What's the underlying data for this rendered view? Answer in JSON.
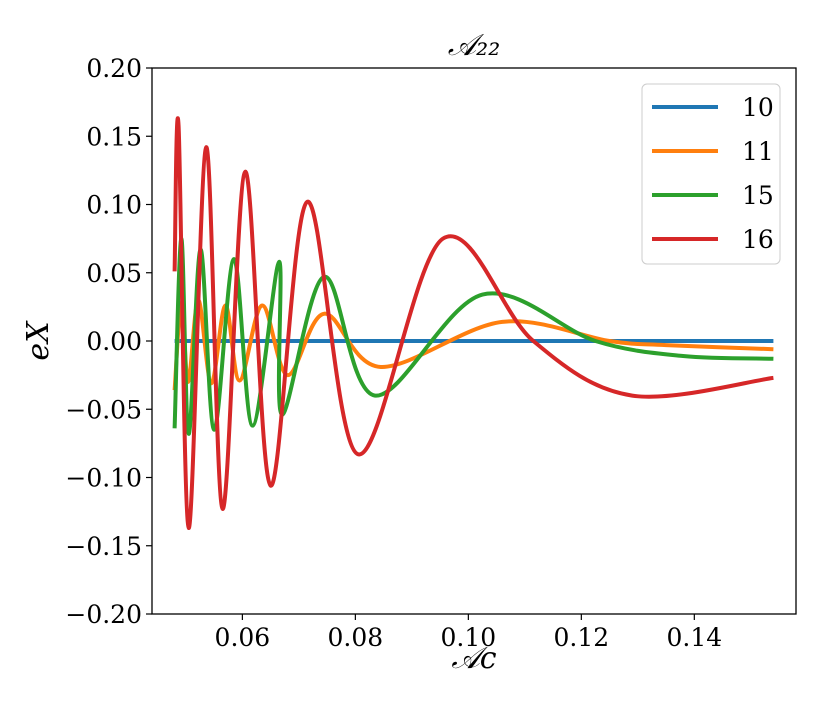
{
  "chart_data": {
    "type": "line",
    "title": "𝒜₂₂",
    "xlabel": "𝒜c",
    "ylabel": "eX",
    "xlim": [
      0.044,
      0.158
    ],
    "ylim": [
      -0.2,
      0.2
    ],
    "xticks": [
      0.06,
      0.08,
      0.1,
      0.12,
      0.14
    ],
    "xtick_labels": [
      "0.06",
      "0.08",
      "0.10",
      "0.12",
      "0.14"
    ],
    "yticks": [
      0.2,
      0.15,
      0.1,
      0.05,
      0.0,
      -0.05,
      -0.1,
      -0.15,
      -0.2
    ],
    "ytick_labels": [
      "0.20",
      "0.15",
      "0.10",
      "0.05",
      "0.00",
      "−0.05",
      "−0.10",
      "−0.15",
      "−0.20"
    ],
    "grid": false,
    "legend_position": "top-right",
    "series": [
      {
        "name": "10",
        "color": "#1f77b4",
        "points": [
          [
            0.048,
            0.0
          ],
          [
            0.154,
            0.0
          ]
        ]
      },
      {
        "name": "11",
        "color": "#ff7f0e",
        "points": [
          [
            0.048,
            -0.036
          ],
          [
            0.0492,
            0.028
          ],
          [
            0.0504,
            -0.03
          ],
          [
            0.0522,
            0.03
          ],
          [
            0.0545,
            -0.031
          ],
          [
            0.057,
            0.026
          ],
          [
            0.0595,
            -0.029
          ],
          [
            0.0635,
            0.026
          ],
          [
            0.068,
            -0.025
          ],
          [
            0.0745,
            0.02
          ],
          [
            0.0845,
            -0.019
          ],
          [
            0.106,
            0.014
          ],
          [
            0.125,
            0.0
          ],
          [
            0.135,
            -0.003
          ],
          [
            0.154,
            -0.006
          ]
        ]
      },
      {
        "name": "15",
        "color": "#2ca02c",
        "points": [
          [
            0.048,
            -0.064
          ],
          [
            0.0492,
            0.075
          ],
          [
            0.0505,
            -0.068
          ],
          [
            0.0526,
            0.067
          ],
          [
            0.055,
            -0.065
          ],
          [
            0.0585,
            0.06
          ],
          [
            0.0618,
            -0.062
          ],
          [
            0.0665,
            0.058
          ],
          [
            0.067,
            -0.054
          ],
          [
            0.0745,
            0.047
          ],
          [
            0.0835,
            -0.04
          ],
          [
            0.1025,
            0.034
          ],
          [
            0.1225,
            0.0
          ],
          [
            0.138,
            -0.011
          ],
          [
            0.154,
            -0.013
          ]
        ]
      },
      {
        "name": "16",
        "color": "#d62728",
        "points": [
          [
            0.048,
            0.051
          ],
          [
            0.0487,
            0.158
          ],
          [
            0.0505,
            -0.137
          ],
          [
            0.0536,
            0.142
          ],
          [
            0.0565,
            -0.123
          ],
          [
            0.0605,
            0.124
          ],
          [
            0.065,
            -0.106
          ],
          [
            0.0715,
            0.102
          ],
          [
            0.0805,
            -0.083
          ],
          [
            0.0955,
            0.075
          ],
          [
            0.1115,
            0.0
          ],
          [
            0.129,
            -0.04
          ],
          [
            0.154,
            -0.027
          ]
        ]
      }
    ]
  }
}
